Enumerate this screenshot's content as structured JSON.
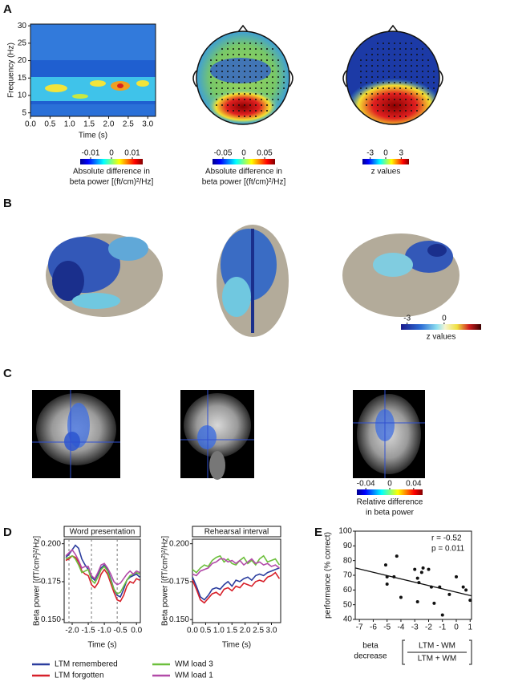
{
  "panel_labels": [
    "A",
    "B",
    "C",
    "D",
    "E"
  ],
  "panel_a": {
    "spectrogram": {
      "y_label": "Frequency (Hz)",
      "x_label": "Time (s)",
      "xlim": [
        0,
        3.2
      ],
      "ylim": [
        4,
        30.5
      ],
      "xticks": [
        {
          "value": 0,
          "label": "0.0"
        },
        0.5,
        {
          "value": 1,
          "label": "1.0"
        },
        1.5,
        {
          "value": 2,
          "label": "2.0"
        },
        2.5,
        {
          "value": 3,
          "label": "3.0"
        }
      ],
      "yticks": [
        5,
        10,
        15,
        20,
        25,
        30
      ]
    },
    "colorbars": [
      {
        "lim": [
          -0.015,
          0.015
        ],
        "ticks": [
          -0.01,
          0,
          0.01
        ],
        "caption": [
          "Absolute difference in",
          "beta power [(ft/cm)²/Hz]"
        ]
      },
      {
        "lim": [
          -0.075,
          0.075
        ],
        "ticks": [
          -0.05,
          0,
          0.05
        ],
        "caption": [
          "Absolute difference in",
          "beta power [(ft/cm)²/Hz]"
        ]
      },
      {
        "lim": [
          -4.5,
          4.5
        ],
        "ticks": [
          -3,
          0,
          3
        ],
        "caption": [
          "z values"
        ]
      }
    ]
  },
  "panel_b": {
    "colorbar": {
      "lim": [
        -3.5,
        3
      ],
      "ticks": [
        -3,
        0
      ],
      "caption": [
        "z values"
      ]
    }
  },
  "panel_c": {
    "colorbar": {
      "lim": [
        -0.055,
        0.055
      ],
      "ticks": [
        -0.04,
        0,
        0.04
      ],
      "caption": [
        "Relative difference",
        "in beta power"
      ]
    }
  },
  "chart_data": [
    {
      "type": "line",
      "title": "Word presentation",
      "y_label": "Beta power [(fT/cm²)²/Hz]",
      "x_label": "Time (s)",
      "x": [
        -2.2,
        -2.1,
        -2.0,
        -1.9,
        -1.8,
        -1.7,
        -1.6,
        -1.5,
        -1.4,
        -1.3,
        -1.2,
        -1.1,
        -1.0,
        -0.9,
        -0.8,
        -0.7,
        -0.6,
        -0.5,
        -0.4,
        -0.3,
        -0.2,
        -0.1,
        0.0,
        0.1
      ],
      "xlim": [
        -2.25,
        0.12
      ],
      "ylim": [
        0.148,
        0.203
      ],
      "xticks": [
        {
          "value": -2,
          "label": "-2.0"
        },
        -1.5,
        {
          "value": -1,
          "label": "-1.0"
        },
        -0.5,
        {
          "value": 0,
          "label": "0.0"
        }
      ],
      "yticks": [
        {
          "value": 0.15,
          "label": "0.150"
        },
        0.175,
        {
          "value": 0.2,
          "label": "0.200"
        }
      ],
      "vlines": [
        -2.1,
        -1.4,
        -0.6
      ],
      "series": [
        {
          "name": "LTM remembered",
          "color": "#2b3d9e",
          "values": [
            0.191,
            0.193,
            0.196,
            0.199,
            0.197,
            0.19,
            0.186,
            0.183,
            0.178,
            0.176,
            0.18,
            0.184,
            0.186,
            0.183,
            0.177,
            0.17,
            0.166,
            0.165,
            0.17,
            0.176,
            0.178,
            0.179,
            0.18,
            0.178
          ]
        },
        {
          "name": "LTM forgotten",
          "color": "#d7202a",
          "values": [
            0.189,
            0.19,
            0.192,
            0.191,
            0.188,
            0.182,
            0.18,
            0.179,
            0.173,
            0.171,
            0.174,
            0.18,
            0.183,
            0.18,
            0.174,
            0.168,
            0.163,
            0.162,
            0.166,
            0.172,
            0.175,
            0.174,
            0.177,
            0.176
          ]
        },
        {
          "name": "WM load 3",
          "color": "#6cbf3c",
          "values": [
            0.19,
            0.191,
            0.192,
            0.19,
            0.186,
            0.181,
            0.182,
            0.183,
            0.176,
            0.174,
            0.178,
            0.183,
            0.185,
            0.182,
            0.176,
            0.17,
            0.167,
            0.168,
            0.172,
            0.176,
            0.179,
            0.18,
            0.181,
            0.18
          ]
        },
        {
          "name": "WM load 1",
          "color": "#b24aa8",
          "values": [
            0.192,
            0.194,
            0.196,
            0.193,
            0.189,
            0.184,
            0.185,
            0.185,
            0.179,
            0.177,
            0.181,
            0.186,
            0.187,
            0.184,
            0.18,
            0.175,
            0.173,
            0.174,
            0.177,
            0.18,
            0.182,
            0.18,
            0.182,
            0.181
          ]
        }
      ]
    },
    {
      "type": "line",
      "title": "Rehearsal interval",
      "y_label": "Beta power [(fT/cm²)²/Hz]",
      "x_label": "Time (s)",
      "x": [
        0,
        0.15,
        0.3,
        0.45,
        0.6,
        0.75,
        0.9,
        1.05,
        1.2,
        1.35,
        1.5,
        1.65,
        1.8,
        1.95,
        2.1,
        2.25,
        2.4,
        2.55,
        2.7,
        2.85,
        3.0,
        3.15,
        3.3
      ],
      "xlim": [
        0,
        3.35
      ],
      "ylim": [
        0.148,
        0.203
      ],
      "xticks": [
        {
          "value": 0,
          "label": "0.0"
        },
        0.5,
        {
          "value": 1,
          "label": "1.0"
        },
        1.5,
        {
          "value": 2,
          "label": "2.0"
        },
        2.5,
        {
          "value": 3,
          "label": "3.0"
        }
      ],
      "yticks": [
        {
          "value": 0.15,
          "label": "0.150"
        },
        0.175,
        {
          "value": 0.2,
          "label": "0.200"
        }
      ],
      "series": [
        {
          "color": "#2b3d9e",
          "values": [
            0.178,
            0.172,
            0.165,
            0.163,
            0.166,
            0.17,
            0.171,
            0.17,
            0.173,
            0.175,
            0.172,
            0.176,
            0.175,
            0.177,
            0.178,
            0.176,
            0.179,
            0.18,
            0.179,
            0.181,
            0.182,
            0.183,
            0.184
          ]
        },
        {
          "color": "#d7202a",
          "values": [
            0.176,
            0.17,
            0.163,
            0.161,
            0.164,
            0.167,
            0.168,
            0.166,
            0.17,
            0.171,
            0.169,
            0.172,
            0.171,
            0.174,
            0.173,
            0.172,
            0.175,
            0.176,
            0.175,
            0.178,
            0.179,
            0.181,
            0.177
          ]
        },
        {
          "color": "#6cbf3c",
          "values": [
            0.183,
            0.181,
            0.184,
            0.186,
            0.185,
            0.189,
            0.191,
            0.192,
            0.188,
            0.19,
            0.187,
            0.186,
            0.189,
            0.191,
            0.187,
            0.189,
            0.186,
            0.19,
            0.192,
            0.188,
            0.189,
            0.19,
            0.186
          ]
        },
        {
          "color": "#b24aa8",
          "values": [
            0.18,
            0.179,
            0.182,
            0.183,
            0.184,
            0.187,
            0.188,
            0.19,
            0.19,
            0.188,
            0.189,
            0.187,
            0.189,
            0.186,
            0.188,
            0.19,
            0.187,
            0.188,
            0.186,
            0.187,
            0.185,
            0.186,
            0.184
          ]
        }
      ]
    },
    {
      "type": "scatter",
      "y_label": "performance (% correct)",
      "x_label": {
        "lines": [
          "beta",
          "decrease"
        ],
        "numerator": "LTM - WM",
        "denominator": "LTM + WM"
      },
      "annotations": [
        "r = -0.52",
        "p = 0.011"
      ],
      "xlim": [
        -7.3,
        1.1
      ],
      "ylim": [
        40,
        100
      ],
      "xticks": [
        -7,
        -6,
        -5,
        -4,
        -3,
        -2,
        -1,
        0,
        1
      ],
      "yticks": [
        40,
        50,
        60,
        70,
        80,
        90,
        100
      ],
      "color": "#111111",
      "x": [
        -5.1,
        -4.3,
        -5.0,
        -4.5,
        -5.0,
        -4.0,
        -3.0,
        -2.8,
        -2.5,
        -2.4,
        -2.7,
        -2.0,
        -1.8,
        -1.6,
        -2.8,
        -1.0,
        -0.5,
        0.0,
        0.5,
        0.7,
        1.0,
        -1.2
      ],
      "y": [
        77,
        83,
        69,
        69,
        64,
        55,
        74,
        68,
        72,
        75,
        65,
        74,
        62,
        51,
        52,
        43,
        57,
        69,
        62,
        60,
        53,
        62
      ],
      "fit": {
        "x": [
          -7.3,
          1.1
        ],
        "y": [
          75,
          56
        ]
      }
    }
  ]
}
